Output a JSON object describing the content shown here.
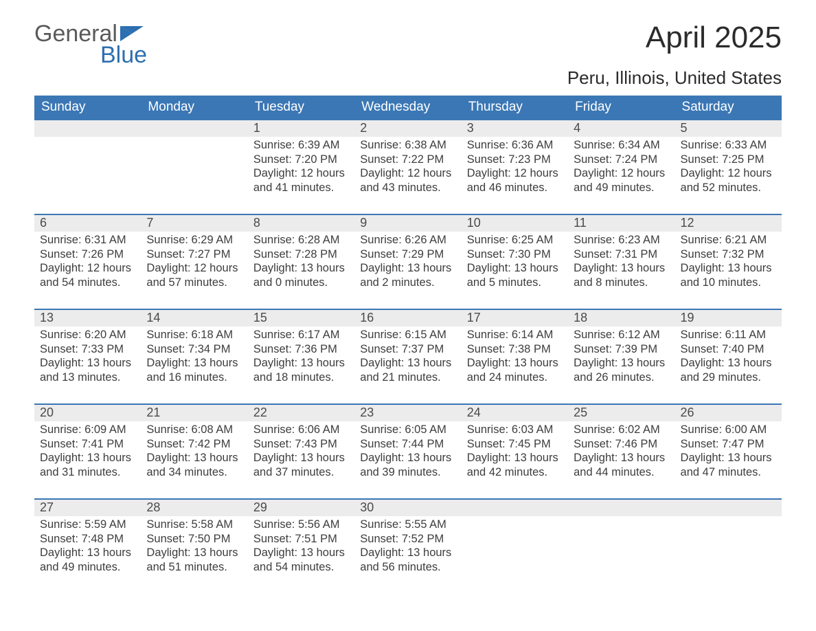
{
  "brand": {
    "word1": "General",
    "word2": "Blue",
    "flag_color": "#2d6fb0"
  },
  "title": "April 2025",
  "location": "Peru, Illinois, United States",
  "header_bg": "#3b77b5",
  "daynum_bg": "#ececec",
  "border_color": "#3b77b5",
  "days_of_week": [
    "Sunday",
    "Monday",
    "Tuesday",
    "Wednesday",
    "Thursday",
    "Friday",
    "Saturday"
  ],
  "weeks": [
    [
      null,
      null,
      {
        "n": "1",
        "sunrise": "6:39 AM",
        "sunset": "7:20 PM",
        "dlh": "12",
        "dlm": "41"
      },
      {
        "n": "2",
        "sunrise": "6:38 AM",
        "sunset": "7:22 PM",
        "dlh": "12",
        "dlm": "43"
      },
      {
        "n": "3",
        "sunrise": "6:36 AM",
        "sunset": "7:23 PM",
        "dlh": "12",
        "dlm": "46"
      },
      {
        "n": "4",
        "sunrise": "6:34 AM",
        "sunset": "7:24 PM",
        "dlh": "12",
        "dlm": "49"
      },
      {
        "n": "5",
        "sunrise": "6:33 AM",
        "sunset": "7:25 PM",
        "dlh": "12",
        "dlm": "52"
      }
    ],
    [
      {
        "n": "6",
        "sunrise": "6:31 AM",
        "sunset": "7:26 PM",
        "dlh": "12",
        "dlm": "54"
      },
      {
        "n": "7",
        "sunrise": "6:29 AM",
        "sunset": "7:27 PM",
        "dlh": "12",
        "dlm": "57"
      },
      {
        "n": "8",
        "sunrise": "6:28 AM",
        "sunset": "7:28 PM",
        "dlh": "13",
        "dlm": "0"
      },
      {
        "n": "9",
        "sunrise": "6:26 AM",
        "sunset": "7:29 PM",
        "dlh": "13",
        "dlm": "2"
      },
      {
        "n": "10",
        "sunrise": "6:25 AM",
        "sunset": "7:30 PM",
        "dlh": "13",
        "dlm": "5"
      },
      {
        "n": "11",
        "sunrise": "6:23 AM",
        "sunset": "7:31 PM",
        "dlh": "13",
        "dlm": "8"
      },
      {
        "n": "12",
        "sunrise": "6:21 AM",
        "sunset": "7:32 PM",
        "dlh": "13",
        "dlm": "10"
      }
    ],
    [
      {
        "n": "13",
        "sunrise": "6:20 AM",
        "sunset": "7:33 PM",
        "dlh": "13",
        "dlm": "13"
      },
      {
        "n": "14",
        "sunrise": "6:18 AM",
        "sunset": "7:34 PM",
        "dlh": "13",
        "dlm": "16"
      },
      {
        "n": "15",
        "sunrise": "6:17 AM",
        "sunset": "7:36 PM",
        "dlh": "13",
        "dlm": "18"
      },
      {
        "n": "16",
        "sunrise": "6:15 AM",
        "sunset": "7:37 PM",
        "dlh": "13",
        "dlm": "21"
      },
      {
        "n": "17",
        "sunrise": "6:14 AM",
        "sunset": "7:38 PM",
        "dlh": "13",
        "dlm": "24"
      },
      {
        "n": "18",
        "sunrise": "6:12 AM",
        "sunset": "7:39 PM",
        "dlh": "13",
        "dlm": "26"
      },
      {
        "n": "19",
        "sunrise": "6:11 AM",
        "sunset": "7:40 PM",
        "dlh": "13",
        "dlm": "29"
      }
    ],
    [
      {
        "n": "20",
        "sunrise": "6:09 AM",
        "sunset": "7:41 PM",
        "dlh": "13",
        "dlm": "31"
      },
      {
        "n": "21",
        "sunrise": "6:08 AM",
        "sunset": "7:42 PM",
        "dlh": "13",
        "dlm": "34"
      },
      {
        "n": "22",
        "sunrise": "6:06 AM",
        "sunset": "7:43 PM",
        "dlh": "13",
        "dlm": "37"
      },
      {
        "n": "23",
        "sunrise": "6:05 AM",
        "sunset": "7:44 PM",
        "dlh": "13",
        "dlm": "39"
      },
      {
        "n": "24",
        "sunrise": "6:03 AM",
        "sunset": "7:45 PM",
        "dlh": "13",
        "dlm": "42"
      },
      {
        "n": "25",
        "sunrise": "6:02 AM",
        "sunset": "7:46 PM",
        "dlh": "13",
        "dlm": "44"
      },
      {
        "n": "26",
        "sunrise": "6:00 AM",
        "sunset": "7:47 PM",
        "dlh": "13",
        "dlm": "47"
      }
    ],
    [
      {
        "n": "27",
        "sunrise": "5:59 AM",
        "sunset": "7:48 PM",
        "dlh": "13",
        "dlm": "49"
      },
      {
        "n": "28",
        "sunrise": "5:58 AM",
        "sunset": "7:50 PM",
        "dlh": "13",
        "dlm": "51"
      },
      {
        "n": "29",
        "sunrise": "5:56 AM",
        "sunset": "7:51 PM",
        "dlh": "13",
        "dlm": "54"
      },
      {
        "n": "30",
        "sunrise": "5:55 AM",
        "sunset": "7:52 PM",
        "dlh": "13",
        "dlm": "56"
      },
      null,
      null,
      null
    ]
  ],
  "labels": {
    "sunrise": "Sunrise:",
    "sunset": "Sunset:",
    "daylight1": "Daylight:",
    "hours": "hours",
    "and": "and",
    "minutes": "minutes."
  }
}
